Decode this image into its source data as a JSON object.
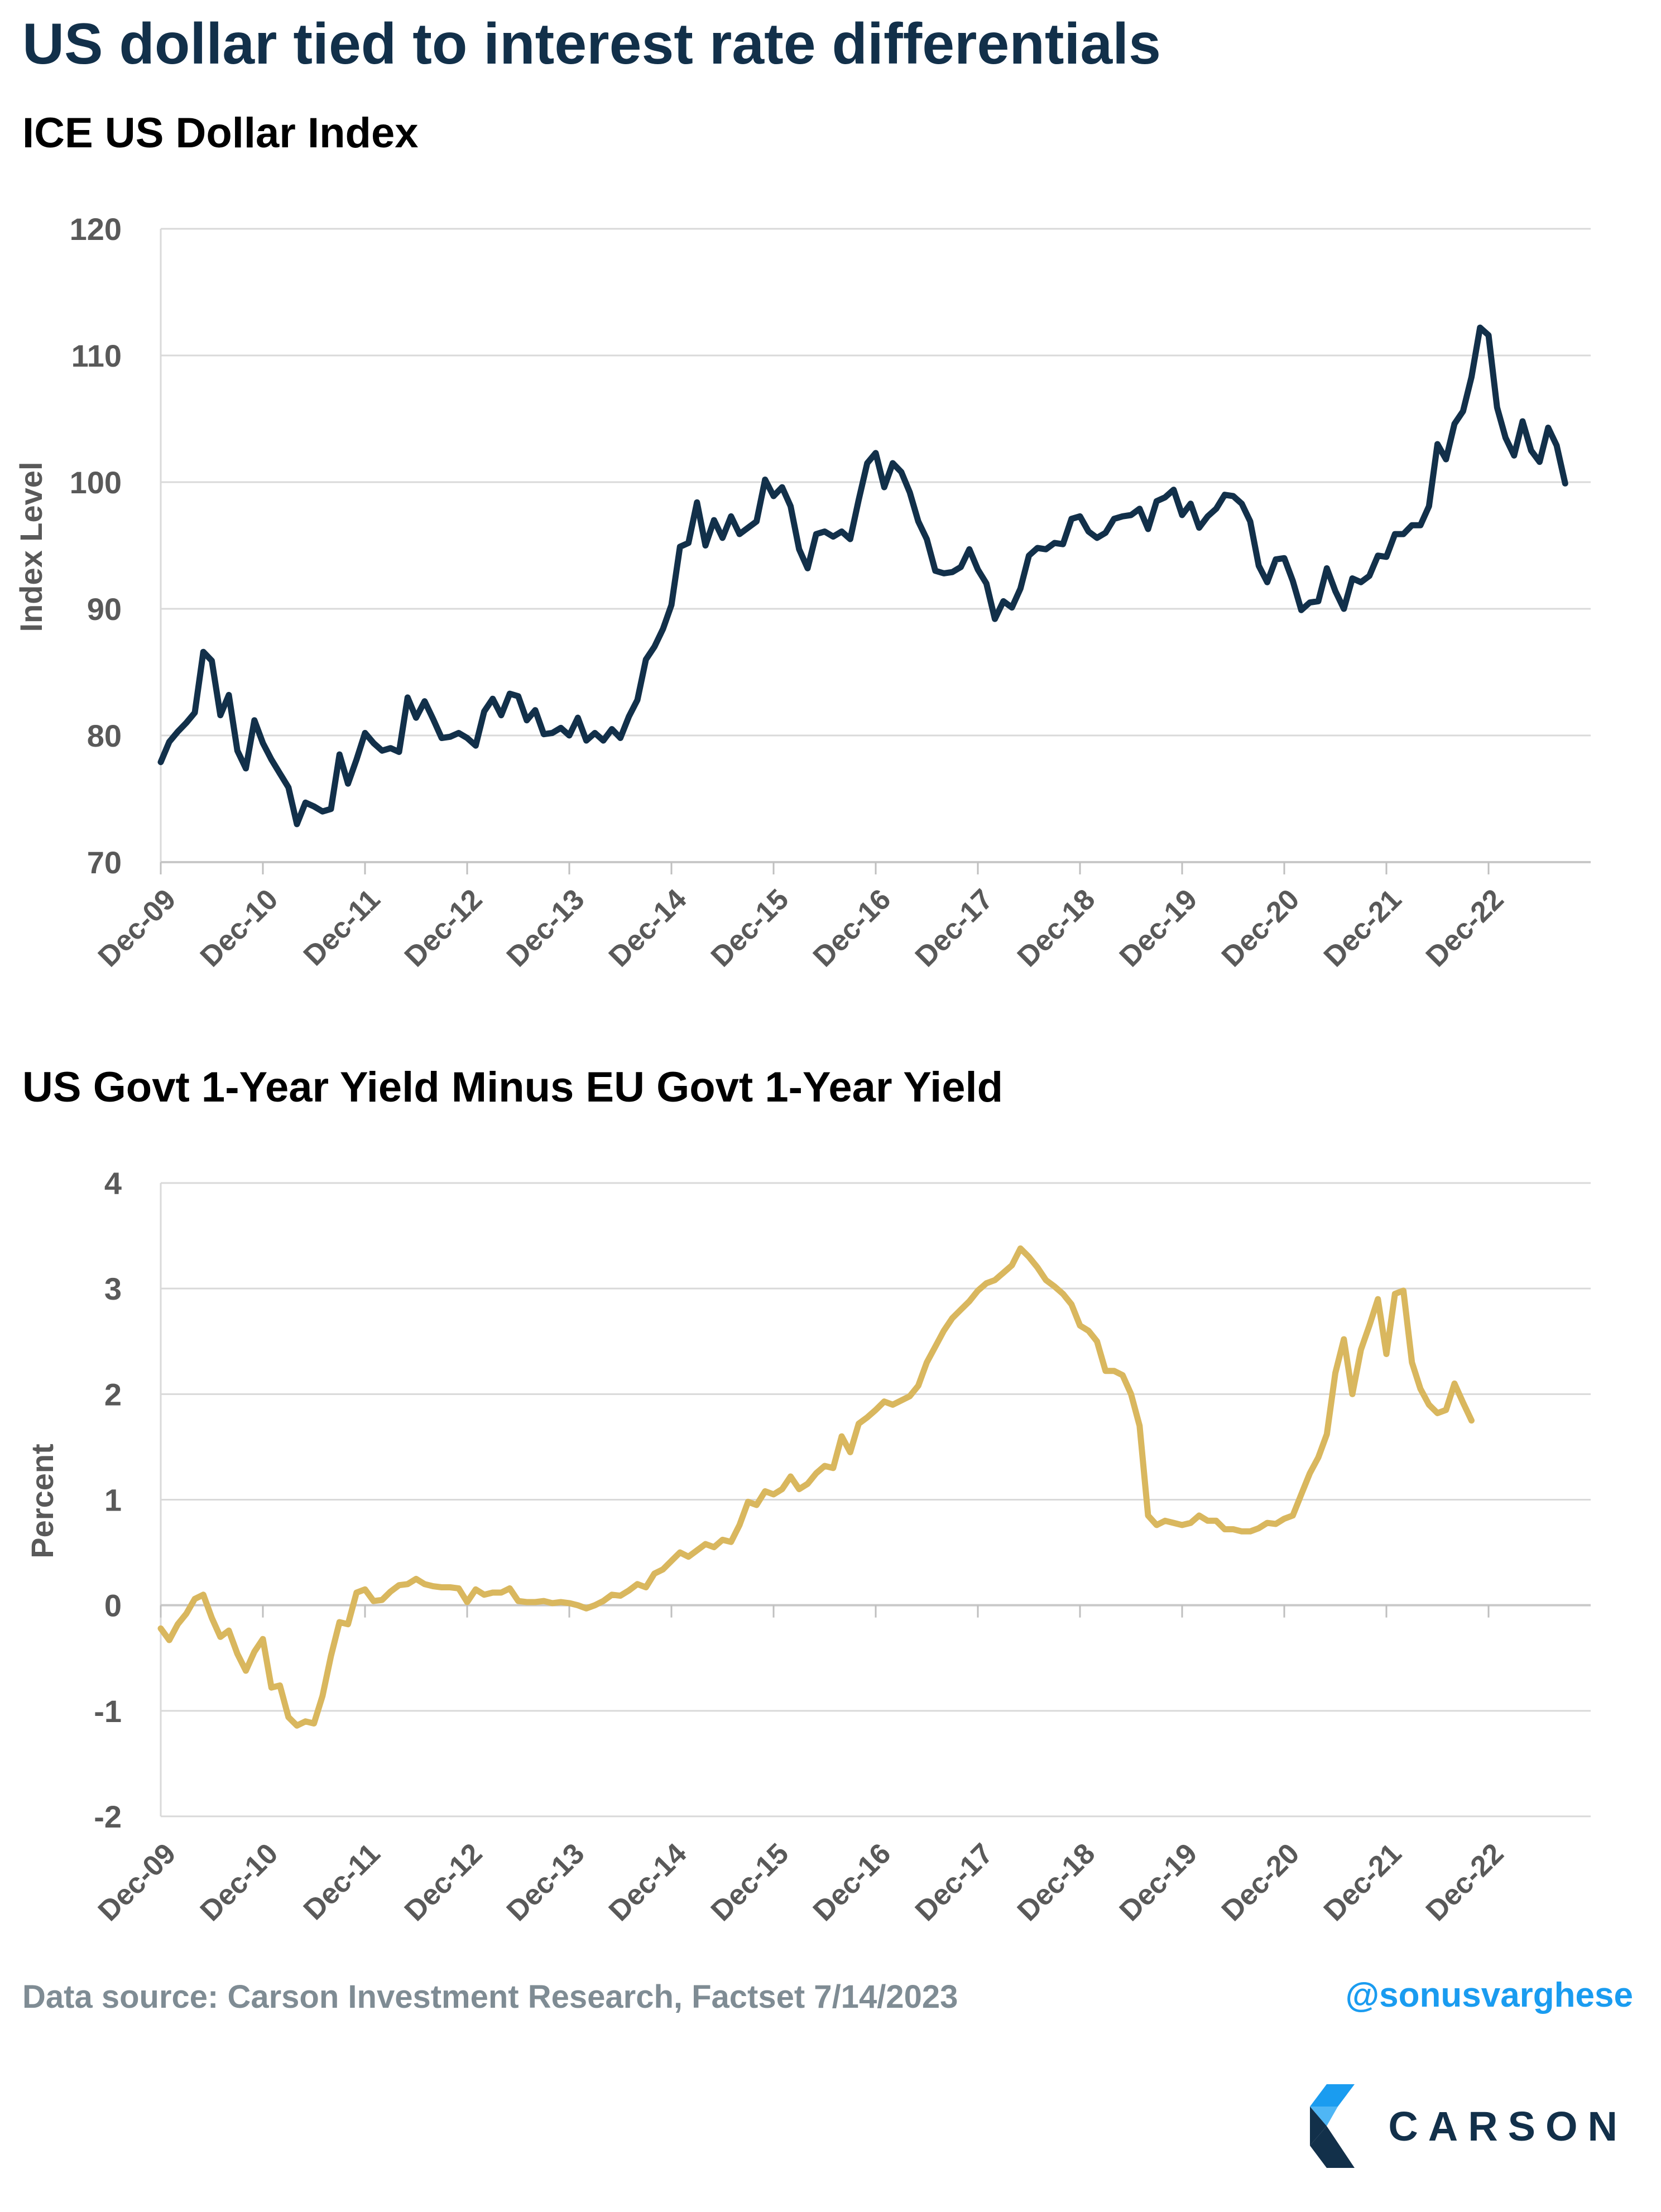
{
  "header": {
    "title": "US dollar tied to interest rate differentials"
  },
  "footer": {
    "source": "Data source: Carson Investment Research, Factset   7/14/2023",
    "handle": "@sonusvarghese",
    "logo_text": "CARSON"
  },
  "colors": {
    "dollar_line": "#12304a",
    "yield_line": "#d9b75e",
    "grid": "#d9d9d9",
    "handle": "#1a9cf0"
  },
  "chart_data": [
    {
      "type": "line",
      "title": "ICE US Dollar Index",
      "xlabel": "",
      "ylabel": "Index Level",
      "ylim": [
        70,
        120
      ],
      "yticks": [
        "70",
        "80",
        "90",
        "100",
        "110",
        "120"
      ],
      "xticks": [
        "Dec-09",
        "Dec-10",
        "Dec-11",
        "Dec-12",
        "Dec-13",
        "Dec-14",
        "Dec-15",
        "Dec-16",
        "Dec-17",
        "Dec-18",
        "Dec-19",
        "Dec-20",
        "Dec-21",
        "Dec-22"
      ],
      "grid": true,
      "series": [
        {
          "x_start": "Dec-09",
          "frequency": "monthly",
          "values": [
            77.9,
            79.5,
            80.3,
            81.0,
            81.8,
            86.6,
            85.9,
            81.6,
            83.2,
            78.8,
            77.4,
            81.2,
            79.4,
            78.1,
            77.0,
            75.9,
            73.0,
            74.7,
            74.4,
            74.0,
            74.2,
            78.5,
            76.2,
            78.1,
            80.2,
            79.4,
            78.8,
            79.0,
            78.7,
            83.0,
            81.4,
            82.7,
            81.3,
            79.8,
            79.9,
            80.2,
            79.8,
            79.2,
            81.9,
            82.9,
            81.6,
            83.3,
            83.1,
            81.2,
            82.0,
            80.1,
            80.2,
            80.6,
            80.0,
            81.4,
            79.6,
            80.2,
            79.6,
            80.5,
            79.8,
            81.5,
            82.8,
            86.0,
            87.0,
            88.4,
            90.3,
            94.9,
            95.2,
            98.4,
            95.0,
            97.0,
            95.6,
            97.3,
            95.9,
            96.4,
            96.9,
            100.2,
            98.9,
            99.6,
            98.1,
            94.7,
            93.2,
            95.9,
            96.1,
            95.7,
            96.1,
            95.5,
            98.6,
            101.5,
            102.3,
            99.6,
            101.5,
            100.8,
            99.2,
            96.9,
            95.5,
            93.0,
            92.8,
            92.9,
            93.3,
            94.7,
            93.1,
            92.0,
            89.2,
            90.6,
            90.1,
            91.6,
            94.2,
            94.8,
            94.7,
            95.2,
            95.1,
            97.1,
            97.3,
            96.1,
            95.6,
            96.0,
            97.1,
            97.3,
            97.4,
            97.9,
            96.3,
            98.5,
            98.8,
            99.4,
            97.4,
            98.3,
            96.4,
            97.3,
            97.9,
            99.0,
            98.9,
            98.3,
            96.9,
            93.4,
            92.1,
            93.9,
            94.0,
            92.2,
            89.9,
            90.5,
            90.6,
            93.2,
            91.4,
            90.0,
            92.4,
            92.1,
            92.6,
            94.2,
            94.1,
            95.9,
            95.9,
            96.6,
            96.6,
            98.1,
            103.0,
            101.8,
            104.6,
            105.6,
            108.3,
            112.2,
            111.6,
            105.9,
            103.5,
            102.1,
            104.8,
            102.5,
            101.6,
            104.3,
            102.9,
            99.9
          ]
        }
      ]
    },
    {
      "type": "line",
      "title": "US Govt 1-Year Yield Minus EU Govt 1-Year Yield",
      "xlabel": "",
      "ylabel": "Percent",
      "ylim": [
        -2,
        4
      ],
      "yticks": [
        "-2",
        "-1",
        "0",
        "1",
        "2",
        "3",
        "4"
      ],
      "xticks": [
        "Dec-09",
        "Dec-10",
        "Dec-11",
        "Dec-12",
        "Dec-13",
        "Dec-14",
        "Dec-15",
        "Dec-16",
        "Dec-17",
        "Dec-18",
        "Dec-19",
        "Dec-20",
        "Dec-21",
        "Dec-22"
      ],
      "grid": true,
      "series": [
        {
          "x_start": "Dec-09",
          "frequency": "monthly",
          "values": [
            -0.22,
            -0.33,
            -0.18,
            -0.08,
            0.06,
            0.1,
            -0.12,
            -0.3,
            -0.24,
            -0.46,
            -0.62,
            -0.44,
            -0.32,
            -0.78,
            -0.76,
            -1.06,
            -1.14,
            -1.1,
            -1.12,
            -0.86,
            -0.48,
            -0.16,
            -0.18,
            0.12,
            0.15,
            0.04,
            0.05,
            0.13,
            0.19,
            0.2,
            0.25,
            0.2,
            0.18,
            0.17,
            0.17,
            0.16,
            0.03,
            0.15,
            0.1,
            0.12,
            0.12,
            0.16,
            0.04,
            0.03,
            0.03,
            0.04,
            0.02,
            0.03,
            0.02,
            0.0,
            -0.03,
            0.0,
            0.04,
            0.1,
            0.09,
            0.14,
            0.2,
            0.17,
            0.3,
            0.34,
            0.42,
            0.5,
            0.46,
            0.52,
            0.58,
            0.55,
            0.62,
            0.6,
            0.76,
            0.98,
            0.95,
            1.08,
            1.05,
            1.1,
            1.22,
            1.1,
            1.15,
            1.25,
            1.32,
            1.3,
            1.6,
            1.45,
            1.72,
            1.78,
            1.85,
            1.93,
            1.9,
            1.94,
            1.98,
            2.08,
            2.3,
            2.45,
            2.6,
            2.72,
            2.8,
            2.88,
            2.98,
            3.05,
            3.08,
            3.15,
            3.22,
            3.38,
            3.3,
            3.2,
            3.08,
            3.02,
            2.95,
            2.85,
            2.65,
            2.6,
            2.5,
            2.22,
            2.22,
            2.18,
            2.0,
            1.7,
            0.85,
            0.76,
            0.8,
            0.78,
            0.76,
            0.78,
            0.85,
            0.8,
            0.8,
            0.72,
            0.72,
            0.7,
            0.7,
            0.73,
            0.78,
            0.77,
            0.82,
            0.85,
            1.05,
            1.25,
            1.4,
            1.62,
            2.2,
            2.52,
            2.0,
            2.42,
            2.65,
            2.9,
            2.38,
            2.95,
            2.98,
            2.3,
            2.05,
            1.9,
            1.82,
            1.85,
            2.1,
            1.92,
            1.75
          ]
        }
      ]
    }
  ]
}
